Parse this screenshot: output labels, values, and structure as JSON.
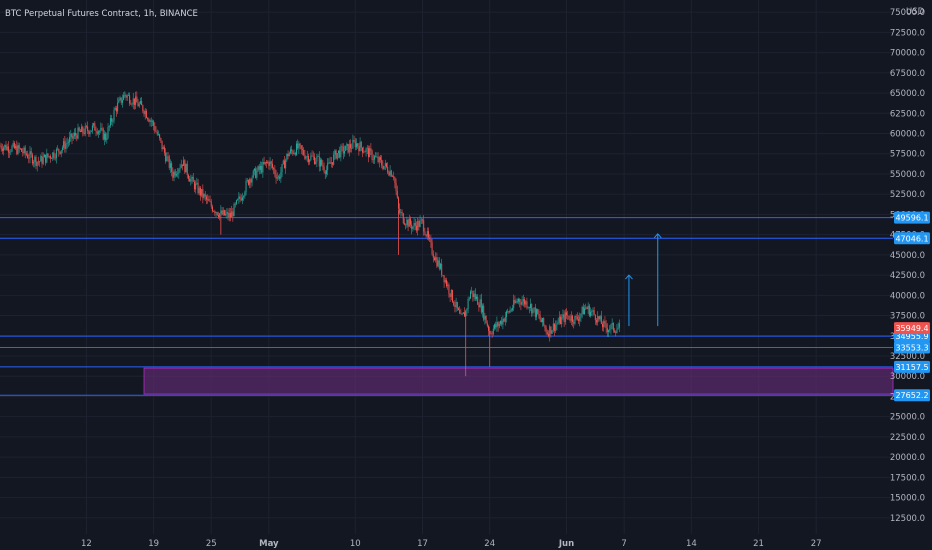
{
  "header": {
    "title": "BTC Perpetual Futures Contract, 1h, BINANCE",
    "currency": "USD"
  },
  "colors": {
    "background": "#131722",
    "grid": "#1e2230",
    "axis_text": "#b2b5be",
    "up": "#26a69a",
    "down": "#ef5350",
    "level_line": "#2962ff",
    "level_label_bg": "#2196f3",
    "last_price_bg": "#ef5350",
    "zone_fill": "#5a2a6a",
    "zone_border": "#9c27b0",
    "arrow": "#2196f3"
  },
  "chart_data": {
    "type": "candlestick",
    "title": "BTC Perpetual Futures Contract, 1h, BINANCE",
    "ylabel": "USD",
    "ylim": [
      10500,
      76500
    ],
    "y_ticks": [
      12500.0,
      15000.0,
      17500.0,
      20000.0,
      22500.0,
      25000.0,
      27500.0,
      30000.0,
      32500.0,
      35000.0,
      37500.0,
      40000.0,
      42500.0,
      45000.0,
      47500.0,
      50000.0,
      52500.0,
      55000.0,
      57500.0,
      60000.0,
      62500.0,
      65000.0,
      67500.0,
      70000.0,
      72500.0,
      75000.0
    ],
    "x_ticks": [
      "12",
      "19",
      "25",
      "May",
      "10",
      "17",
      "24",
      "Jun",
      "7",
      "14",
      "21",
      "27"
    ],
    "x_tick_days": [
      0,
      7,
      13,
      19,
      28,
      35,
      42,
      50,
      56,
      63,
      70,
      76
    ],
    "x_tick_bold": [
      "May",
      "Jun"
    ],
    "data_end_day": 55.5,
    "x_range_days": [
      -9,
      84
    ],
    "price_path": [
      [
        -9,
        58500
      ],
      [
        -7,
        58000
      ],
      [
        -5,
        56500
      ],
      [
        -3,
        57800
      ],
      [
        -1,
        60000
      ],
      [
        1,
        60800
      ],
      [
        2,
        59500
      ],
      [
        3,
        63000
      ],
      [
        4,
        64800
      ],
      [
        5,
        64000
      ],
      [
        6,
        63000
      ],
      [
        7,
        61000
      ],
      [
        8,
        58000
      ],
      [
        9,
        55000
      ],
      [
        10,
        56500
      ],
      [
        11,
        54000
      ],
      [
        12,
        52500
      ],
      [
        13,
        51000
      ],
      [
        14,
        50000
      ],
      [
        15,
        49800
      ],
      [
        16,
        52000
      ],
      [
        17,
        54500
      ],
      [
        18,
        55500
      ],
      [
        19,
        56500
      ],
      [
        20,
        54500
      ],
      [
        21,
        57500
      ],
      [
        22,
        58200
      ],
      [
        23,
        57200
      ],
      [
        24,
        56800
      ],
      [
        25,
        55500
      ],
      [
        26,
        57500
      ],
      [
        27,
        58000
      ],
      [
        28,
        58800
      ],
      [
        29,
        58000
      ],
      [
        30,
        57000
      ],
      [
        31,
        56000
      ],
      [
        32,
        55000
      ],
      [
        32.5,
        50500
      ],
      [
        33,
        49500
      ],
      [
        34,
        48500
      ],
      [
        35,
        49000
      ],
      [
        36,
        45500
      ],
      [
        37,
        43000
      ],
      [
        38,
        40000
      ],
      [
        39,
        37000
      ],
      [
        39.5,
        38000
      ],
      [
        40,
        40500
      ],
      [
        41,
        39000
      ],
      [
        42,
        35500
      ],
      [
        43,
        36500
      ],
      [
        44,
        38000
      ],
      [
        45,
        39500
      ],
      [
        46,
        39000
      ],
      [
        47,
        37500
      ],
      [
        48,
        35500
      ],
      [
        49,
        36500
      ],
      [
        50,
        37500
      ],
      [
        51,
        37000
      ],
      [
        52,
        38500
      ],
      [
        53,
        37500
      ],
      [
        54,
        36000
      ],
      [
        55.5,
        35949.4
      ]
    ],
    "wick_extremes": [
      [
        39.5,
        30000
      ],
      [
        42,
        31157.5
      ],
      [
        32.5,
        45000
      ],
      [
        14,
        47500
      ],
      [
        4,
        65200
      ]
    ],
    "levels": [
      {
        "value": 49596.1,
        "label": "49596.1"
      },
      {
        "value": 47046.1,
        "label": "47046.1"
      },
      {
        "value": 34955.9,
        "label": "34955.9"
      },
      {
        "value": 33553.3,
        "label": "33553.3"
      },
      {
        "value": 31157.5,
        "label": "31157.5"
      },
      {
        "value": 27652.2,
        "label": "27652.2"
      }
    ],
    "last_price": {
      "value": 35949.4,
      "label": "35949.4"
    },
    "zone": {
      "from_day": 6,
      "y_low": 27800,
      "y_high": 31000
    },
    "arrows": [
      {
        "day": 56.5,
        "from": 36200,
        "to": 42500
      },
      {
        "day": 59.5,
        "from": 36200,
        "to": 47600
      }
    ]
  }
}
